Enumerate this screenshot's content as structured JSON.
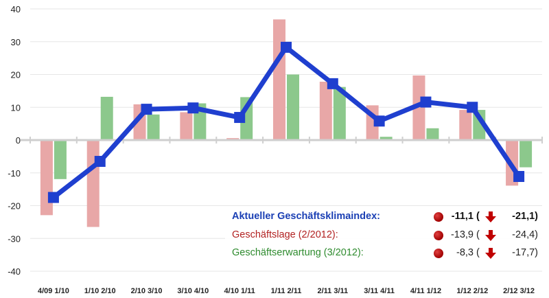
{
  "chart_data": {
    "type": "bar",
    "title": "",
    "xlabel": "",
    "ylabel": "",
    "ylim": [
      -40,
      40
    ],
    "yticks": [
      40,
      30,
      20,
      10,
      0,
      -10,
      -20,
      -30,
      -40
    ],
    "categories": [
      "4/09 1/10",
      "1/10 2/10",
      "2/10 3/10",
      "3/10 4/10",
      "4/10 1/11",
      "1/11 2/11",
      "2/11 3/11",
      "3/11 4/11",
      "4/11 1/12",
      "1/12 2/12",
      "2/12 3/12"
    ],
    "series": [
      {
        "values": [
          -22.9,
          -26.5,
          10.9,
          8.5,
          0.6,
          36.8,
          17.8,
          10.6,
          19.7,
          9.2,
          -13.9
        ],
        "color": "#e8a7a7",
        "kind": "bar"
      },
      {
        "values": [
          -11.9,
          13.2,
          7.8,
          11.2,
          13.1,
          20.0,
          16.2,
          1.0,
          3.6,
          9.2,
          -8.3
        ],
        "color": "#8cc88c",
        "kind": "bar"
      },
      {
        "values": [
          -17.5,
          -6.5,
          9.4,
          9.8,
          6.9,
          28.3,
          17.2,
          5.8,
          11.6,
          10.0,
          -11.1
        ],
        "color": "#1f3fcf",
        "kind": "line"
      }
    ],
    "grid": true,
    "legend_position": "bottom-right"
  },
  "legend": {
    "index": {
      "label": "Aktueller Geschäftsklimaindex:",
      "value": "-11,1",
      "open": "(",
      "prev": "-21,1)"
    },
    "lage": {
      "label": "Geschäftslage (2/2012):",
      "value": "-13,9",
      "open": "(",
      "prev": "-24,4)"
    },
    "erwartung": {
      "label": "Geschäftserwartung (3/2012):",
      "value": "-8,3",
      "open": "(",
      "prev": "-17,7)"
    }
  },
  "colors": {
    "index": "#1f3fcf",
    "lage": "#b22222",
    "erwartung": "#2e8b2e",
    "status": "#c00000",
    "arrow": "#c00000"
  },
  "icons": {
    "status": "red-dot-icon",
    "trend": "arrow-down-icon"
  }
}
